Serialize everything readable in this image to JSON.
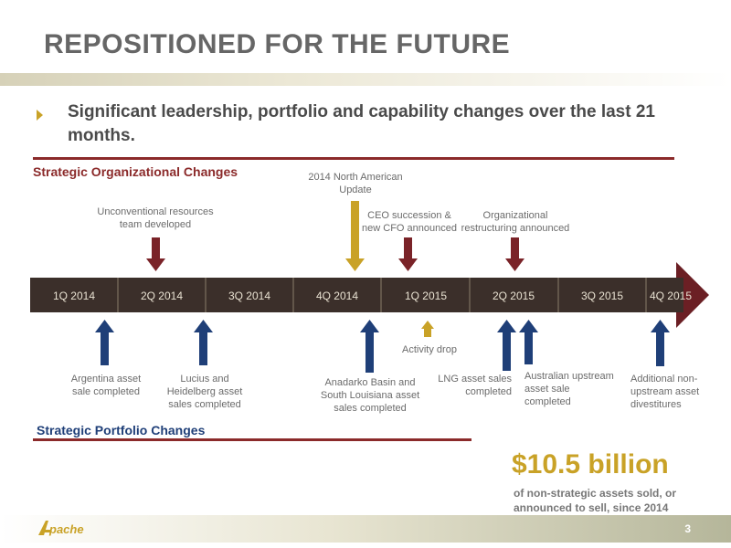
{
  "slide": {
    "title": "REPOSITIONED FOR THE FUTURE",
    "bullet": "Significant leadership, portfolio and capability changes over the last 21 months.",
    "page_number": "3",
    "logo_text": "Apache"
  },
  "org_changes": {
    "label": "Strategic Organizational Changes",
    "notes": [
      {
        "text": "Unconventional resources team developed",
        "color": "#8b2a2a"
      },
      {
        "text": "2014 North American Update",
        "color": "#c9a227"
      },
      {
        "text": "CEO succession & new CFO announced",
        "color": "#8b2a2a"
      },
      {
        "text": "Organizational restructuring announced",
        "color": "#8b2a2a"
      }
    ]
  },
  "timeline": {
    "quarters": [
      "1Q 2014",
      "2Q 2014",
      "3Q 2014",
      "4Q 2014",
      "1Q 2015",
      "2Q 2015",
      "3Q 2015",
      "4Q 2015"
    ],
    "bar_color": "#3b2f2a",
    "arrow_color": "#6b1f24"
  },
  "portfolio_changes": {
    "label": "Strategic Portfolio Changes",
    "notes": [
      {
        "text": "Argentina asset sale completed",
        "color": "#1f3f78"
      },
      {
        "text": "Lucius and Heidelberg asset sales completed",
        "color": "#1f3f78"
      },
      {
        "text": "Activity drop",
        "color": "#c9a227"
      },
      {
        "text": "Anadarko Basin and South Louisiana asset sales completed",
        "color": "#1f3f78"
      },
      {
        "text": "LNG asset sales completed",
        "color": "#1f3f78"
      },
      {
        "text": "Australian upstream asset sale completed",
        "color": "#1f3f78"
      },
      {
        "text": "Additional non-upstream asset divestitures",
        "color": "#1f3f78"
      }
    ]
  },
  "summary": {
    "amount": "$10.5 billion",
    "caption": "of non-strategic assets sold, or announced to sell, since 2014"
  }
}
